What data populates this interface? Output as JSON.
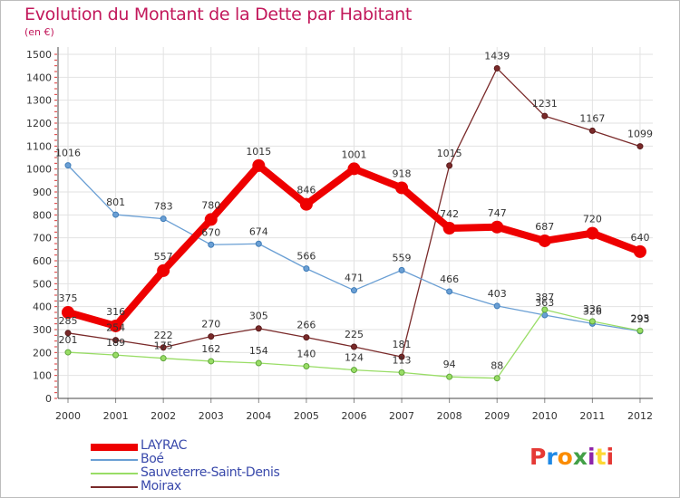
{
  "header": {
    "title": "Evolution du Montant de la Dette par Habitant",
    "subtitle": "(en €)"
  },
  "logo": {
    "text": "Proxiti",
    "letters": [
      {
        "ch": "P",
        "color": "#e53935"
      },
      {
        "ch": "r",
        "color": "#1e88e5"
      },
      {
        "ch": "o",
        "color": "#fb8c00"
      },
      {
        "ch": "x",
        "color": "#43a047"
      },
      {
        "ch": "i",
        "color": "#8e24aa"
      },
      {
        "ch": "t",
        "color": "#fdd835"
      },
      {
        "ch": "i",
        "color": "#e53935"
      }
    ]
  },
  "chart_data": {
    "type": "line",
    "title": "Evolution du Montant de la Dette par Habitant",
    "subtitle": "(en €)",
    "categories": [
      "2000",
      "2001",
      "2002",
      "2003",
      "2004",
      "2005",
      "2006",
      "2007",
      "2008",
      "2009",
      "2010",
      "2011",
      "2012"
    ],
    "yticks": [
      0,
      100,
      200,
      300,
      400,
      500,
      600,
      700,
      800,
      900,
      1000,
      1100,
      1200,
      1300,
      1400,
      1500
    ],
    "ylim": [
      0,
      1500
    ],
    "grid": true,
    "legend_position": "bottom-left",
    "series": [
      {
        "name": "LAYRAC",
        "color": "#ee0000",
        "width": 8,
        "marker": 7,
        "values": [
          375,
          316,
          557,
          780,
          1015,
          846,
          1001,
          918,
          742,
          747,
          687,
          720,
          640
        ]
      },
      {
        "name": "Boé",
        "color": "#6a9fd4",
        "width": 1.3,
        "marker": 3,
        "values": [
          1016,
          801,
          783,
          670,
          674,
          566,
          471,
          559,
          466,
          403,
          363,
          326,
          293
        ]
      },
      {
        "name": "Sauveterre-Saint-Denis",
        "color": "#99dd66",
        "width": 1.3,
        "marker": 3,
        "values": [
          201,
          189,
          175,
          162,
          154,
          140,
          124,
          113,
          94,
          88,
          387,
          336,
          295
        ]
      },
      {
        "name": "Moirax",
        "color": "#7a2a2a",
        "width": 1.3,
        "marker": 3,
        "values": [
          285,
          254,
          222,
          270,
          305,
          266,
          225,
          181,
          1015,
          1439,
          1231,
          1167,
          1099
        ]
      }
    ],
    "value_labels": {
      "LAYRAC": [
        "375",
        "316",
        "557",
        "780",
        "1015",
        "846",
        "1001",
        "918",
        "742",
        "747",
        "687",
        "720",
        "640"
      ],
      "Boé": [
        "1016",
        "801",
        "783",
        "670",
        "674",
        "566",
        "471",
        "559",
        "466",
        "403",
        "363",
        "326",
        "293"
      ],
      "Sauveterre-Saint-Denis": [
        "201",
        "189",
        "175",
        "162",
        "154",
        "140",
        "124",
        "113",
        "94",
        "88",
        "387",
        "336",
        "295"
      ],
      "Moirax": [
        "285",
        "254",
        "222",
        "270",
        "305",
        "266",
        "225",
        "181",
        "1015",
        "1439",
        "1231",
        "1167",
        "1099"
      ]
    }
  }
}
